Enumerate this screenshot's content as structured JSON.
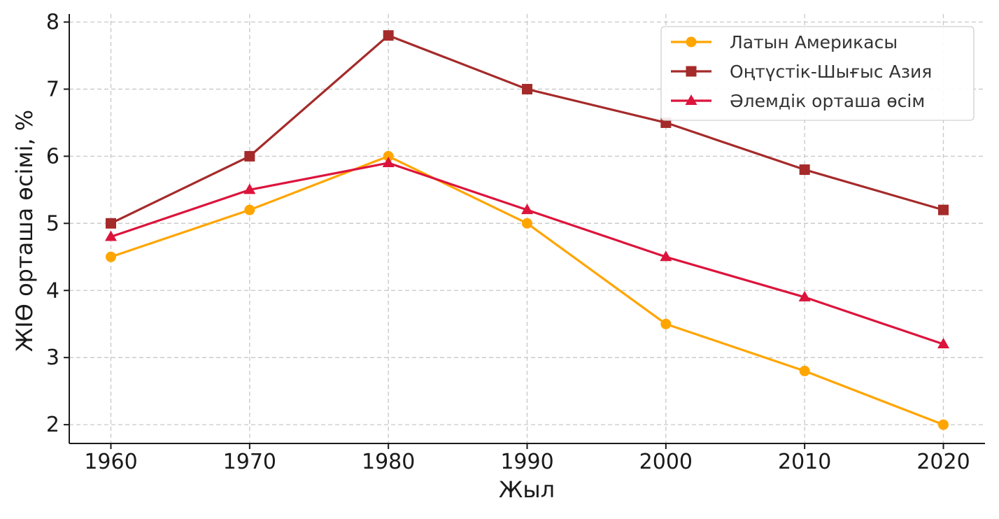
{
  "chart_data": {
    "type": "line",
    "title": "",
    "xlabel": "Жыл",
    "ylabel": "ЖІӨ орташа өсімі, %",
    "x": [
      1960,
      1970,
      1980,
      1990,
      2000,
      2010,
      2020
    ],
    "xlim": [
      1957,
      2023
    ],
    "ylim": [
      1.72,
      8.12
    ],
    "xticks": [
      "1960",
      "1970",
      "1980",
      "1990",
      "2000",
      "2010",
      "2020"
    ],
    "yticks": [
      "2",
      "3",
      "4",
      "5",
      "6",
      "7",
      "8"
    ],
    "grid": true,
    "legend_position": "top-right",
    "series": [
      {
        "name": "Латын Америкасы",
        "values": [
          4.5,
          5.2,
          6.0,
          5.0,
          3.5,
          2.8,
          2.0
        ],
        "color": "#FFA500",
        "marker": "circle"
      },
      {
        "name": "Оңтүстік-Шығыс Азия",
        "values": [
          5.0,
          6.0,
          7.8,
          7.0,
          6.5,
          5.8,
          5.2
        ],
        "color": "#A52A2A",
        "marker": "square"
      },
      {
        "name": "Әлемдік орташа өсім",
        "values": [
          4.8,
          5.5,
          5.9,
          5.2,
          4.5,
          3.9,
          3.2
        ],
        "color": "#DC143C",
        "marker": "triangle"
      }
    ]
  }
}
